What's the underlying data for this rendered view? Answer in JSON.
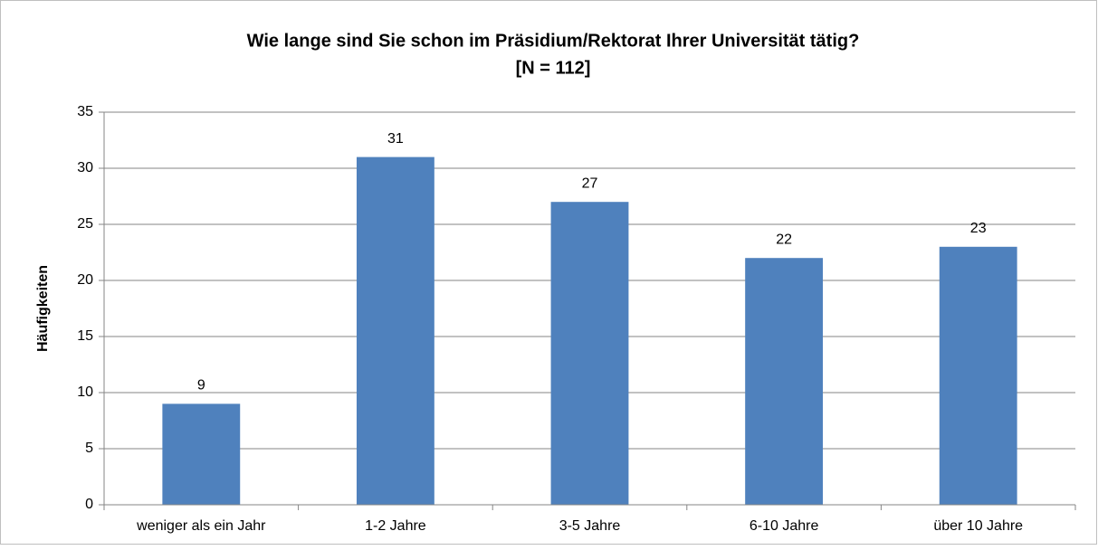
{
  "chart_data": {
    "type": "bar",
    "title": "Wie lange sind Sie schon im Präsidium/Rektorat Ihrer Universität tätig?",
    "subtitle": "[N = 112]",
    "y_label": "Häufigkeiten",
    "categories": [
      "weniger als ein Jahr",
      "1-2 Jahre",
      "3-5 Jahre",
      "6-10 Jahre",
      "über 10 Jahre"
    ],
    "values": [
      9,
      31,
      27,
      22,
      23
    ],
    "color": "#4f81bd",
    "ylim": [
      0,
      35
    ],
    "yticks": [
      0,
      5,
      10,
      15,
      20,
      25,
      30,
      35
    ],
    "grid": true
  }
}
